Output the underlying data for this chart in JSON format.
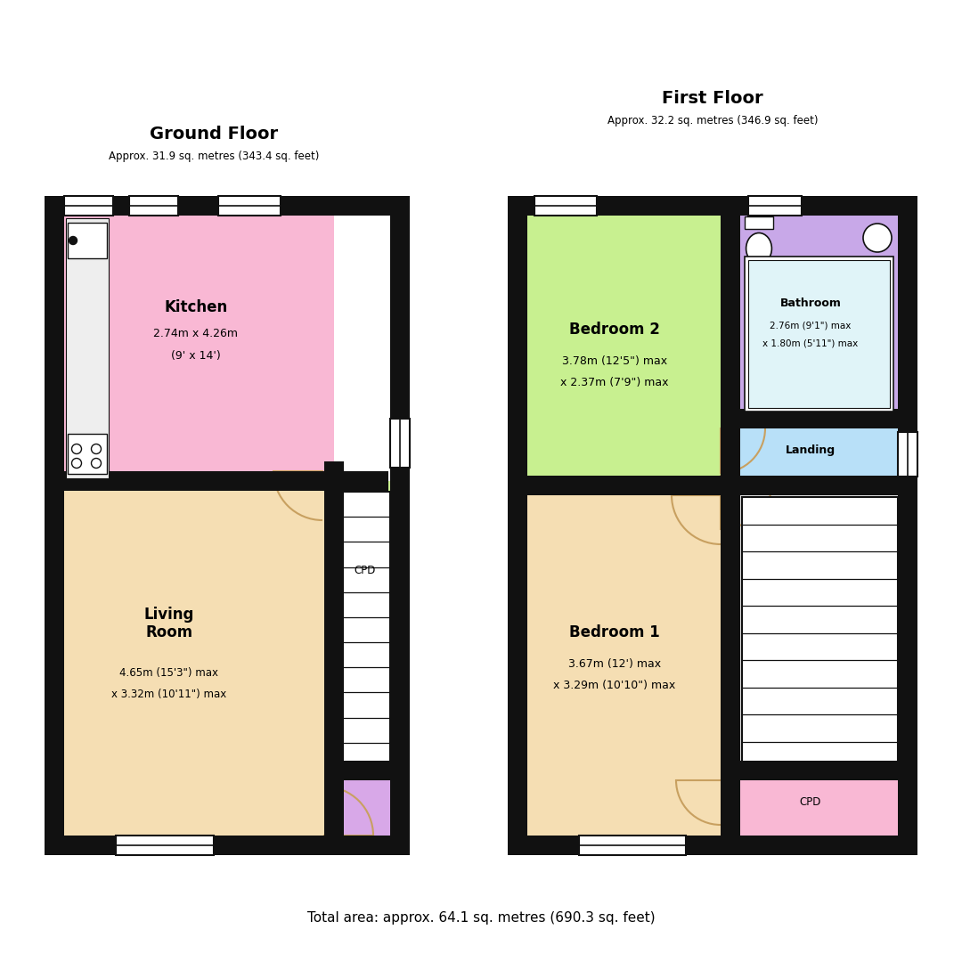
{
  "ground_floor_title": "Ground Floor",
  "ground_floor_subtitle": "Approx. 31.9 sq. metres (343.4 sq. feet)",
  "first_floor_title": "First Floor",
  "first_floor_subtitle": "Approx. 32.2 sq. metres (346.9 sq. feet)",
  "total_area": "Total area: approx. 64.1 sq. metres (690.3 sq. feet)",
  "colors": {
    "kitchen": "#F9B8D4",
    "living_room": "#F5DEB3",
    "cpd_ground": "#C8F090",
    "hallway_ground": "#D8A8E8",
    "bedroom2": "#C8F090",
    "bathroom": "#C8A8E8",
    "landing": "#B8E0F8",
    "bedroom1": "#F5DEB3",
    "cpd_first": "#F9B8D4",
    "wall": "#111111",
    "white": "#FFFFFF",
    "door_arc": "#C8A060"
  }
}
